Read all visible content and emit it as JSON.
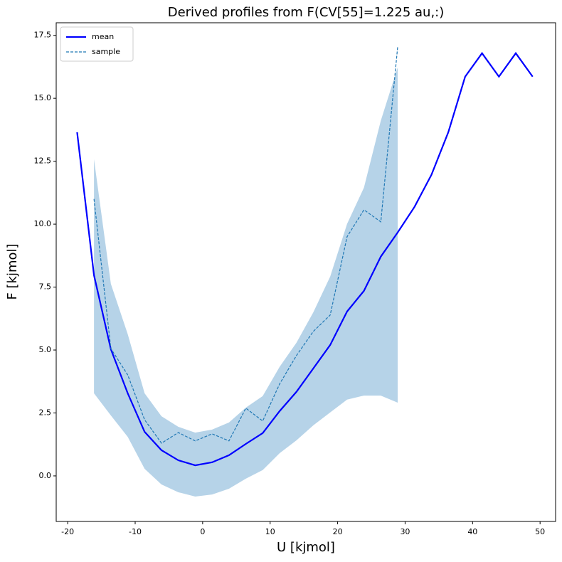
{
  "chart_data": {
    "type": "line",
    "title": "Derived profiles from F(CV[55]=1.225 au,:)",
    "x_label": "U [kjmol]",
    "y_label": "F [kjmol]",
    "xlim": [
      -21.7,
      52.3
    ],
    "ylim": [
      -1.81,
      18.0
    ],
    "xticks": [
      -20,
      -10,
      0,
      10,
      20,
      30,
      40,
      50
    ],
    "yticks": [
      {
        "value": 0,
        "label": "0.0"
      },
      2.5,
      {
        "value": 5,
        "label": "5.0"
      },
      7.5,
      {
        "value": 10,
        "label": "10.0"
      },
      12.5,
      {
        "value": 15,
        "label": "15.0"
      },
      17.5
    ],
    "legend": "upper left",
    "series": [
      {
        "name": "mean",
        "color": "#0000ff",
        "style": "solid",
        "x": [
          -18.6,
          -16.1,
          -13.6,
          -11.1,
          -8.6,
          -6.1,
          -3.6,
          -1.1,
          1.4,
          3.9,
          6.4,
          8.9,
          11.4,
          13.9,
          16.4,
          18.9,
          21.4,
          23.9,
          26.4,
          28.9,
          31.4,
          33.9,
          36.4,
          38.9,
          41.4,
          43.9,
          46.4,
          48.9
        ],
        "values": [
          13.65,
          7.97,
          5.03,
          3.28,
          1.75,
          1.02,
          0.62,
          0.42,
          0.54,
          0.82,
          1.27,
          1.7,
          2.57,
          3.34,
          4.27,
          5.2,
          6.53,
          7.35,
          8.71,
          9.67,
          10.69,
          11.96,
          13.65,
          15.86,
          16.79,
          15.86,
          16.79,
          15.86
        ]
      },
      {
        "name": "sample",
        "color": "#1f77b4",
        "style": "dashed",
        "x": [
          -16.1,
          -13.6,
          -11.1,
          -8.6,
          -6.1,
          -3.6,
          -1.1,
          1.4,
          3.9,
          6.4,
          8.9,
          11.4,
          13.9,
          16.4,
          18.9,
          21.4,
          23.9,
          26.4,
          28.9
        ],
        "values": [
          11.0,
          5.06,
          4.01,
          2.23,
          1.3,
          1.72,
          1.39,
          1.67,
          1.39,
          2.69,
          2.18,
          3.65,
          4.78,
          5.74,
          6.39,
          9.5,
          10.57,
          10.09,
          17.05
        ]
      }
    ],
    "band": {
      "color": "#b6d3e8",
      "x": [
        -16.1,
        -13.6,
        -11.1,
        -8.6,
        -6.1,
        -3.6,
        -1.1,
        1.4,
        3.9,
        6.4,
        8.9,
        11.4,
        13.9,
        16.4,
        18.9,
        21.4,
        23.9,
        26.4,
        28.9
      ],
      "upper": [
        12.58,
        7.63,
        5.63,
        3.28,
        2.37,
        1.95,
        1.72,
        1.84,
        2.12,
        2.71,
        3.17,
        4.33,
        5.29,
        6.5,
        7.92,
        10.01,
        11.45,
        14.11,
        16.23
      ],
      "lower": [
        3.28,
        2.4,
        1.55,
        0.28,
        -0.34,
        -0.65,
        -0.82,
        -0.74,
        -0.51,
        -0.11,
        0.23,
        0.9,
        1.41,
        2.01,
        2.52,
        3.03,
        3.19,
        3.19,
        2.91
      ]
    }
  }
}
